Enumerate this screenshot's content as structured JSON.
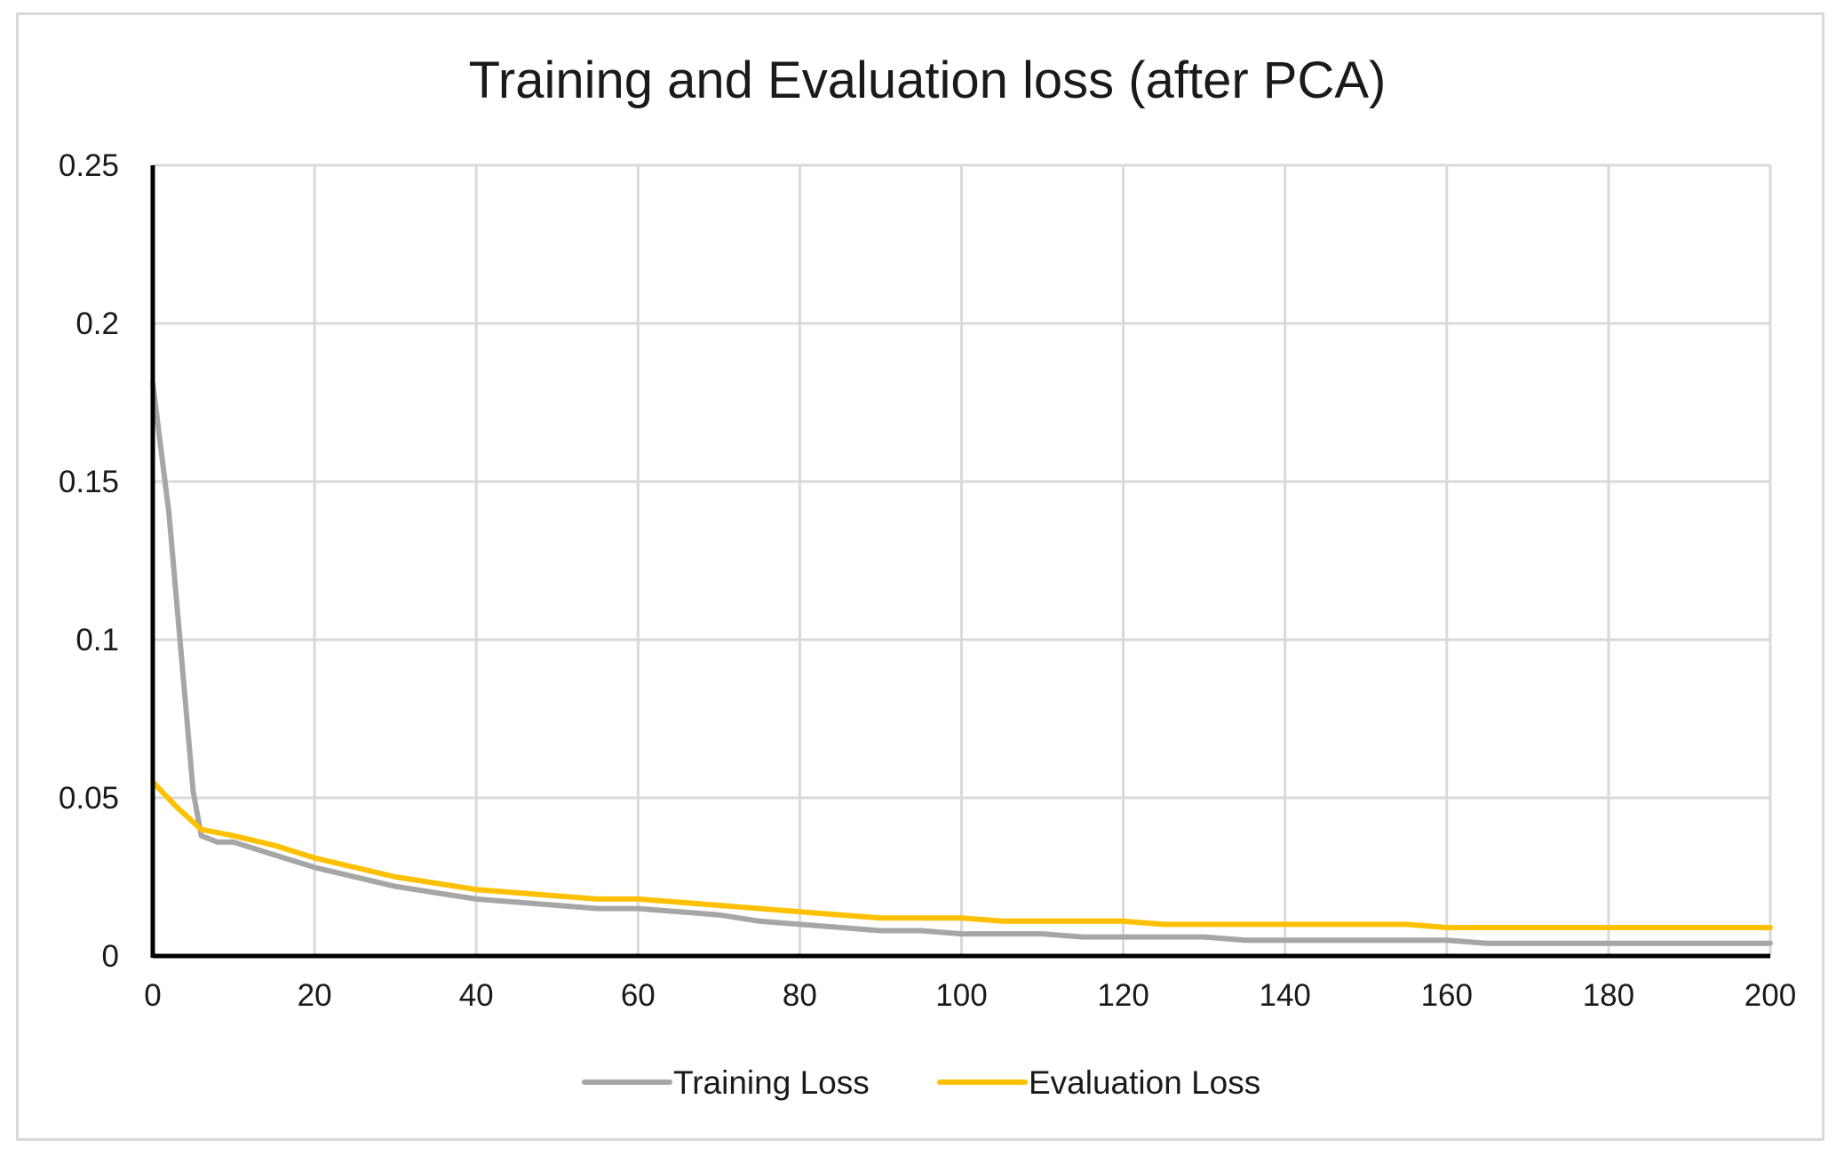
{
  "chart_data": {
    "type": "line",
    "title": "Training and Evaluation loss (after PCA)",
    "xlabel": "",
    "ylabel": "",
    "xlim": [
      0,
      200
    ],
    "ylim": [
      0,
      0.25
    ],
    "x_ticks": [
      "0",
      "20",
      "40",
      "60",
      "80",
      "100",
      "120",
      "140",
      "160",
      "180",
      "200"
    ],
    "y_ticks": [
      "0",
      "0.05",
      "0.1",
      "0.15",
      "0.2",
      "0.25"
    ],
    "grid": true,
    "legend_position": "bottom",
    "series": [
      {
        "name": "Training Loss",
        "color": "#a6a6a6",
        "x": [
          0,
          2,
          5,
          6,
          8,
          10,
          15,
          20,
          30,
          40,
          50,
          55,
          60,
          70,
          75,
          80,
          90,
          95,
          100,
          105,
          110,
          115,
          120,
          130,
          135,
          140,
          150,
          155,
          160,
          165,
          170,
          180,
          190,
          200
        ],
        "y": [
          0.181,
          0.14,
          0.052,
          0.038,
          0.036,
          0.036,
          0.032,
          0.028,
          0.022,
          0.018,
          0.016,
          0.015,
          0.015,
          0.013,
          0.011,
          0.01,
          0.008,
          0.008,
          0.007,
          0.007,
          0.007,
          0.006,
          0.006,
          0.006,
          0.005,
          0.005,
          0.005,
          0.005,
          0.005,
          0.004,
          0.004,
          0.004,
          0.004,
          0.004
        ]
      },
      {
        "name": "Evaluation Loss",
        "color": "#ffc000",
        "x": [
          0,
          3,
          6,
          10,
          15,
          20,
          30,
          40,
          50,
          55,
          60,
          70,
          80,
          90,
          95,
          100,
          105,
          110,
          120,
          125,
          130,
          140,
          150,
          155,
          160,
          165,
          170,
          180,
          190,
          200
        ],
        "y": [
          0.055,
          0.047,
          0.04,
          0.038,
          0.035,
          0.031,
          0.025,
          0.021,
          0.019,
          0.018,
          0.018,
          0.016,
          0.014,
          0.012,
          0.012,
          0.012,
          0.011,
          0.011,
          0.011,
          0.01,
          0.01,
          0.01,
          0.01,
          0.01,
          0.009,
          0.009,
          0.009,
          0.009,
          0.009,
          0.009
        ]
      }
    ]
  }
}
